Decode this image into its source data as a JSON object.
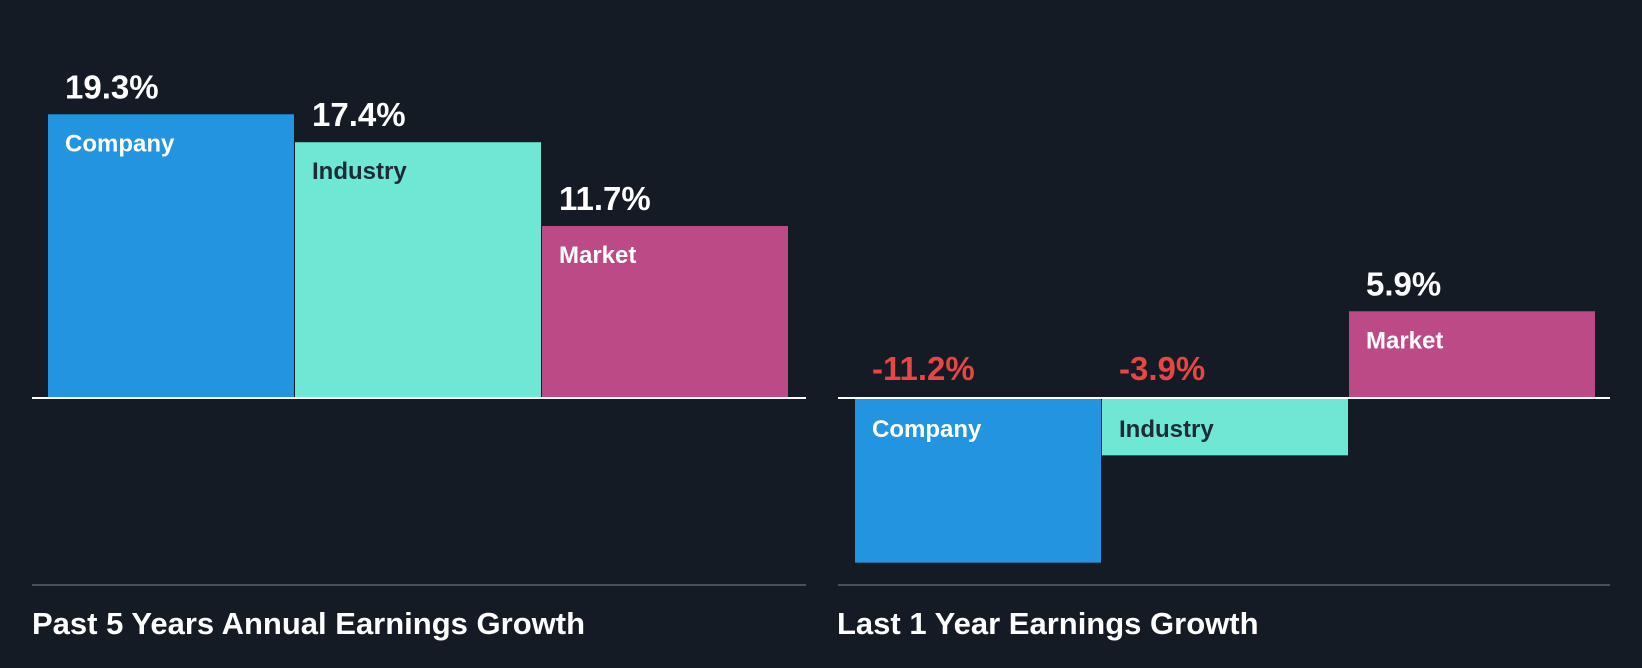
{
  "colors": {
    "background": "#151b24",
    "company": "#2394e0",
    "industry": "#6ee7d5",
    "market": "#bb4a86",
    "negative_label": "#e84545",
    "positive_label": "#ffffff",
    "baseline": "#ffffff",
    "axis_bottom": "#4a505a"
  },
  "chart_data": [
    {
      "type": "bar",
      "title": "Past 5 Years Annual Earnings Growth",
      "categories": [
        "Company",
        "Industry",
        "Market"
      ],
      "values": [
        19.3,
        17.4,
        11.7
      ],
      "value_labels": [
        "19.3%",
        "17.4%",
        "11.7%"
      ],
      "unit": "%",
      "ylim": [
        -11.9,
        19.3
      ]
    },
    {
      "type": "bar",
      "title": "Last 1 Year Earnings Growth",
      "categories": [
        "Company",
        "Industry",
        "Market"
      ],
      "values": [
        -11.2,
        -3.9,
        5.9
      ],
      "value_labels": [
        "-11.2%",
        "-3.9%",
        "5.9%"
      ],
      "unit": "%",
      "ylim": [
        -11.9,
        19.3
      ]
    }
  ]
}
